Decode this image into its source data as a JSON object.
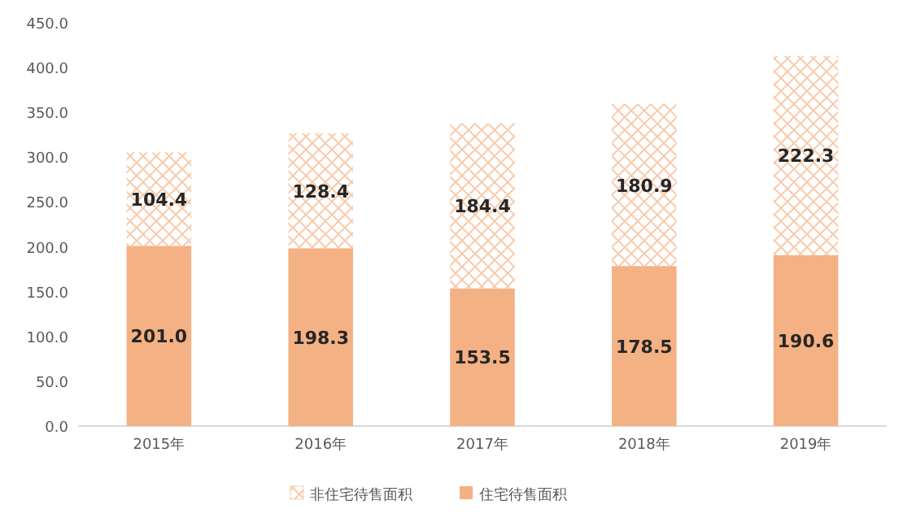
{
  "chart_data": {
    "type": "bar",
    "stacked": true,
    "categories": [
      "2015年",
      "2016年",
      "2017年",
      "2018年",
      "2019年"
    ],
    "series": [
      {
        "name": "住宅待售面积",
        "color": "#f4b183",
        "values": [
          201.0,
          198.3,
          153.5,
          178.5,
          190.6
        ],
        "value_labels": [
          "201.0",
          "198.3",
          "153.5",
          "178.5",
          "190.6"
        ]
      },
      {
        "name": "非住宅待售面积",
        "color": "#f8cbad",
        "values": [
          104.4,
          128.4,
          184.4,
          180.9,
          222.3
        ],
        "value_labels": [
          "104.4",
          "128.4",
          "184.4",
          "180.9",
          "222.3"
        ]
      }
    ],
    "ylim": [
      0,
      450
    ],
    "yticks": [
      {
        "value": 0,
        "label": "0.0"
      },
      {
        "value": 50,
        "label": "50.0"
      },
      {
        "value": 100,
        "label": "100.0"
      },
      {
        "value": 150,
        "label": "150.0"
      },
      {
        "value": 200,
        "label": "200.0"
      },
      {
        "value": 250,
        "label": "250.0"
      },
      {
        "value": 300,
        "label": "300.0"
      },
      {
        "value": 350,
        "label": "350.0"
      },
      {
        "value": 400,
        "label": "400.0"
      },
      {
        "value": 450,
        "label": "450.0"
      }
    ],
    "grid": false,
    "legend": "bottom"
  }
}
